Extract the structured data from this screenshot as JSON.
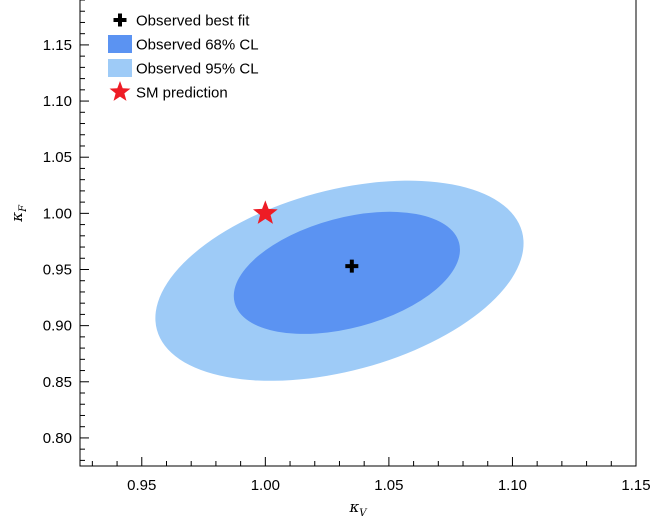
{
  "chart_data": {
    "type": "contour",
    "xlabel": "κ",
    "xlabel_sub": "V",
    "ylabel": "κ",
    "ylabel_sub": "F",
    "xlim": [
      0.925,
      1.15
    ],
    "ylim": [
      0.775,
      1.19
    ],
    "x_ticks": [
      0.95,
      1.0,
      1.05,
      1.1,
      1.15
    ],
    "y_ticks": [
      0.8,
      0.85,
      0.9,
      0.95,
      1.0,
      1.05,
      1.1,
      1.15
    ],
    "x_tick_labels": [
      "0.95",
      "1.00",
      "1.05",
      "1.10",
      "1.15"
    ],
    "y_tick_labels": [
      "0.80",
      "0.85",
      "0.90",
      "0.95",
      "1.00",
      "1.05",
      "1.10",
      "1.15"
    ],
    "best_fit": {
      "x": 1.035,
      "y": 0.953
    },
    "sm_prediction": {
      "x": 1.0,
      "y": 1.0
    },
    "contours": [
      {
        "name": "Observed 95% CL",
        "color": "#9ecbf7",
        "center": {
          "x": 1.03,
          "y": 0.94
        },
        "semi_axis_kappa_v": 0.0765,
        "semi_axis_kappa_f": 0.0805,
        "rotation_deg": -15
      },
      {
        "name": "Observed 68% CL",
        "color": "#5b93f2",
        "center": {
          "x": 1.033,
          "y": 0.947
        },
        "semi_axis_kappa_v": 0.047,
        "semi_axis_kappa_f": 0.049,
        "rotation_deg": -15
      }
    ],
    "legend": {
      "position": "top-left",
      "entries": [
        {
          "label": "Observed best fit",
          "marker": "plus",
          "color": "#000000"
        },
        {
          "label": "Observed 68% CL",
          "marker": "square",
          "color": "#5b93f2"
        },
        {
          "label": "Observed 95% CL",
          "marker": "square",
          "color": "#9ecbf7"
        },
        {
          "label": "SM prediction",
          "marker": "star",
          "color": "#ee1c25"
        }
      ]
    },
    "grid": false
  }
}
